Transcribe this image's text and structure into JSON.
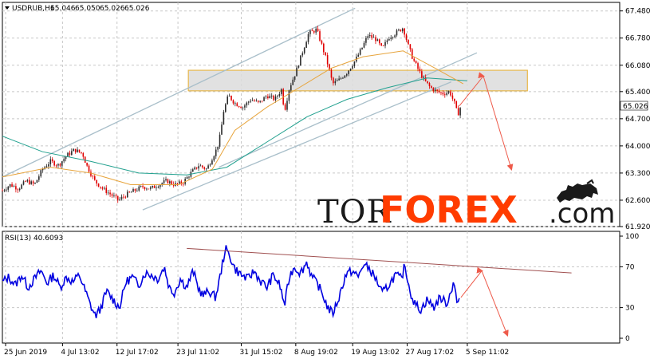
{
  "chart_data": [
    {
      "type": "candlestick",
      "symbol_label": "USDRUB,H1",
      "ohlc": [
        "65.046",
        "65.050",
        "65.026",
        "65.026"
      ],
      "last_price": "65.026",
      "y_ticks": [
        "67.480",
        "66.780",
        "66.080",
        "65.400",
        "64.700",
        "64.000",
        "63.300",
        "62.600",
        "61.920"
      ],
      "ylim": [
        61.92,
        67.7
      ],
      "x_ticks": [
        "25 Jun 2019",
        "4 Jul 13:02",
        "12 Jul 17:02",
        "23 Jul 11:02",
        "31 Jul 15:02",
        "8 Aug 19:02",
        "19 Aug 13:02",
        "27 Aug 17:02",
        "5 Sep 11:02"
      ],
      "price_path": [
        [
          0,
          62.85
        ],
        [
          10,
          63.0
        ],
        [
          20,
          62.9
        ],
        [
          30,
          63.1
        ],
        [
          40,
          63.0
        ],
        [
          50,
          63.4
        ],
        [
          60,
          63.6
        ],
        [
          70,
          63.5
        ],
        [
          80,
          63.75
        ],
        [
          90,
          63.9
        ],
        [
          100,
          63.8
        ],
        [
          105,
          63.5
        ],
        [
          115,
          63.1
        ],
        [
          125,
          62.9
        ],
        [
          135,
          62.75
        ],
        [
          145,
          62.6
        ],
        [
          155,
          62.75
        ],
        [
          165,
          62.85
        ],
        [
          175,
          62.95
        ],
        [
          185,
          62.9
        ],
        [
          195,
          63.0
        ],
        [
          205,
          63.1
        ],
        [
          215,
          63.0
        ],
        [
          225,
          63.05
        ],
        [
          235,
          63.3
        ],
        [
          245,
          63.5
        ],
        [
          255,
          63.4
        ],
        [
          262,
          63.7
        ],
        [
          268,
          63.95
        ],
        [
          272,
          64.3
        ],
        [
          276,
          64.9
        ],
        [
          282,
          65.3
        ],
        [
          290,
          65.1
        ],
        [
          300,
          65.0
        ],
        [
          310,
          65.2
        ],
        [
          320,
          65.1
        ],
        [
          330,
          65.3
        ],
        [
          340,
          65.2
        ],
        [
          348,
          65.45
        ],
        [
          352,
          64.9
        ],
        [
          358,
          65.5
        ],
        [
          366,
          65.9
        ],
        [
          374,
          66.4
        ],
        [
          382,
          66.9
        ],
        [
          392,
          67.0
        ],
        [
          400,
          66.5
        ],
        [
          406,
          66.1
        ],
        [
          412,
          65.6
        ],
        [
          420,
          65.7
        ],
        [
          430,
          65.9
        ],
        [
          440,
          66.2
        ],
        [
          448,
          66.5
        ],
        [
          456,
          66.85
        ],
        [
          466,
          66.75
        ],
        [
          474,
          66.5
        ],
        [
          482,
          66.8
        ],
        [
          490,
          66.9
        ],
        [
          500,
          67.05
        ],
        [
          506,
          66.6
        ],
        [
          512,
          66.25
        ],
        [
          518,
          66.0
        ],
        [
          526,
          65.7
        ],
        [
          534,
          65.5
        ],
        [
          542,
          65.4
        ],
        [
          550,
          65.35
        ],
        [
          558,
          65.4
        ],
        [
          564,
          65.1
        ],
        [
          568,
          64.8
        ],
        [
          572,
          65.03
        ]
      ],
      "ma_fast_path": [
        [
          0,
          63.2
        ],
        [
          60,
          63.45
        ],
        [
          110,
          63.3
        ],
        [
          160,
          63.0
        ],
        [
          220,
          63.0
        ],
        [
          262,
          63.4
        ],
        [
          290,
          64.4
        ],
        [
          330,
          65.0
        ],
        [
          370,
          65.5
        ],
        [
          410,
          66.0
        ],
        [
          450,
          66.3
        ],
        [
          500,
          66.45
        ],
        [
          540,
          66.0
        ],
        [
          575,
          65.6
        ]
      ],
      "ma_slow_path": [
        [
          0,
          64.25
        ],
        [
          50,
          63.85
        ],
        [
          110,
          63.6
        ],
        [
          170,
          63.3
        ],
        [
          230,
          63.25
        ],
        [
          280,
          63.45
        ],
        [
          330,
          64.1
        ],
        [
          380,
          64.75
        ],
        [
          430,
          65.2
        ],
        [
          480,
          65.5
        ],
        [
          530,
          65.75
        ],
        [
          580,
          65.68
        ]
      ],
      "channel_upper": [
        [
          0,
          63.2
        ],
        [
          440,
          67.55
        ]
      ],
      "channel_mid": [
        [
          270,
          63.45
        ],
        [
          592,
          66.4
        ]
      ],
      "channel_lower": [
        [
          175,
          62.35
        ],
        [
          560,
          65.65
        ]
      ],
      "zone": [
        65.42,
        65.95
      ],
      "forecast_arrow": [
        [
          570,
          65.03
        ],
        [
          600,
          65.8
        ],
        [
          635,
          63.4
        ]
      ]
    },
    {
      "type": "line",
      "indicator_label": "RSI(13) 40.6093",
      "y_ticks": [
        "100",
        "70",
        "30",
        "0"
      ],
      "ylim": [
        0,
        100
      ],
      "levels": [
        70,
        30
      ],
      "rsi_path": [
        [
          0,
          55
        ],
        [
          8,
          60
        ],
        [
          16,
          52
        ],
        [
          24,
          62
        ],
        [
          32,
          50
        ],
        [
          40,
          58
        ],
        [
          48,
          66
        ],
        [
          56,
          54
        ],
        [
          64,
          62
        ],
        [
          72,
          50
        ],
        [
          80,
          60
        ],
        [
          88,
          55
        ],
        [
          96,
          62
        ],
        [
          104,
          45
        ],
        [
          110,
          32
        ],
        [
          116,
          22
        ],
        [
          122,
          28
        ],
        [
          130,
          46
        ],
        [
          138,
          38
        ],
        [
          146,
          30
        ],
        [
          154,
          55
        ],
        [
          162,
          60
        ],
        [
          170,
          52
        ],
        [
          178,
          64
        ],
        [
          186,
          62
        ],
        [
          194,
          58
        ],
        [
          202,
          70
        ],
        [
          208,
          50
        ],
        [
          214,
          44
        ],
        [
          222,
          58
        ],
        [
          230,
          50
        ],
        [
          238,
          66
        ],
        [
          244,
          50
        ],
        [
          250,
          42
        ],
        [
          258,
          46
        ],
        [
          266,
          40
        ],
        [
          272,
          62
        ],
        [
          278,
          88
        ],
        [
          284,
          80
        ],
        [
          290,
          68
        ],
        [
          298,
          62
        ],
        [
          306,
          58
        ],
        [
          314,
          66
        ],
        [
          322,
          56
        ],
        [
          330,
          50
        ],
        [
          338,
          62
        ],
        [
          346,
          52
        ],
        [
          352,
          32
        ],
        [
          358,
          60
        ],
        [
          364,
          70
        ],
        [
          372,
          64
        ],
        [
          380,
          75
        ],
        [
          386,
          60
        ],
        [
          394,
          52
        ],
        [
          400,
          42
        ],
        [
          406,
          30
        ],
        [
          412,
          24
        ],
        [
          420,
          40
        ],
        [
          428,
          62
        ],
        [
          436,
          66
        ],
        [
          444,
          60
        ],
        [
          450,
          72
        ],
        [
          458,
          68
        ],
        [
          466,
          58
        ],
        [
          474,
          44
        ],
        [
          482,
          52
        ],
        [
          490,
          62
        ],
        [
          498,
          58
        ],
        [
          502,
          72
        ],
        [
          508,
          48
        ],
        [
          514,
          34
        ],
        [
          522,
          28
        ],
        [
          530,
          38
        ],
        [
          538,
          30
        ],
        [
          546,
          40
        ],
        [
          554,
          34
        ],
        [
          560,
          46
        ],
        [
          563,
          58
        ],
        [
          567,
          34
        ],
        [
          571,
          40
        ]
      ],
      "trendline": [
        [
          230,
          88
        ],
        [
          710,
          64
        ]
      ],
      "forecast_arrow": [
        [
          572,
          40
        ],
        [
          598,
          66
        ],
        [
          630,
          3
        ]
      ]
    }
  ],
  "watermark": {
    "part1": "TOR",
    "part2": "FOREX",
    "part3": ".com",
    "bull_icon": "bull-icon"
  },
  "colors": {
    "bull_candle": "#2b2b2b",
    "bear_candle": "#e00000",
    "ma_fast": "#e7a43c",
    "ma_slow": "#20a08e",
    "channel": "#a9bfca",
    "zone_fill": "#dcdcdc",
    "zone_border": "#e8b84d",
    "forecast": "#ee5a4a",
    "rsi": "#0000e0",
    "rsi_trend": "#a05050",
    "brand_orange": "#ff3c00"
  }
}
